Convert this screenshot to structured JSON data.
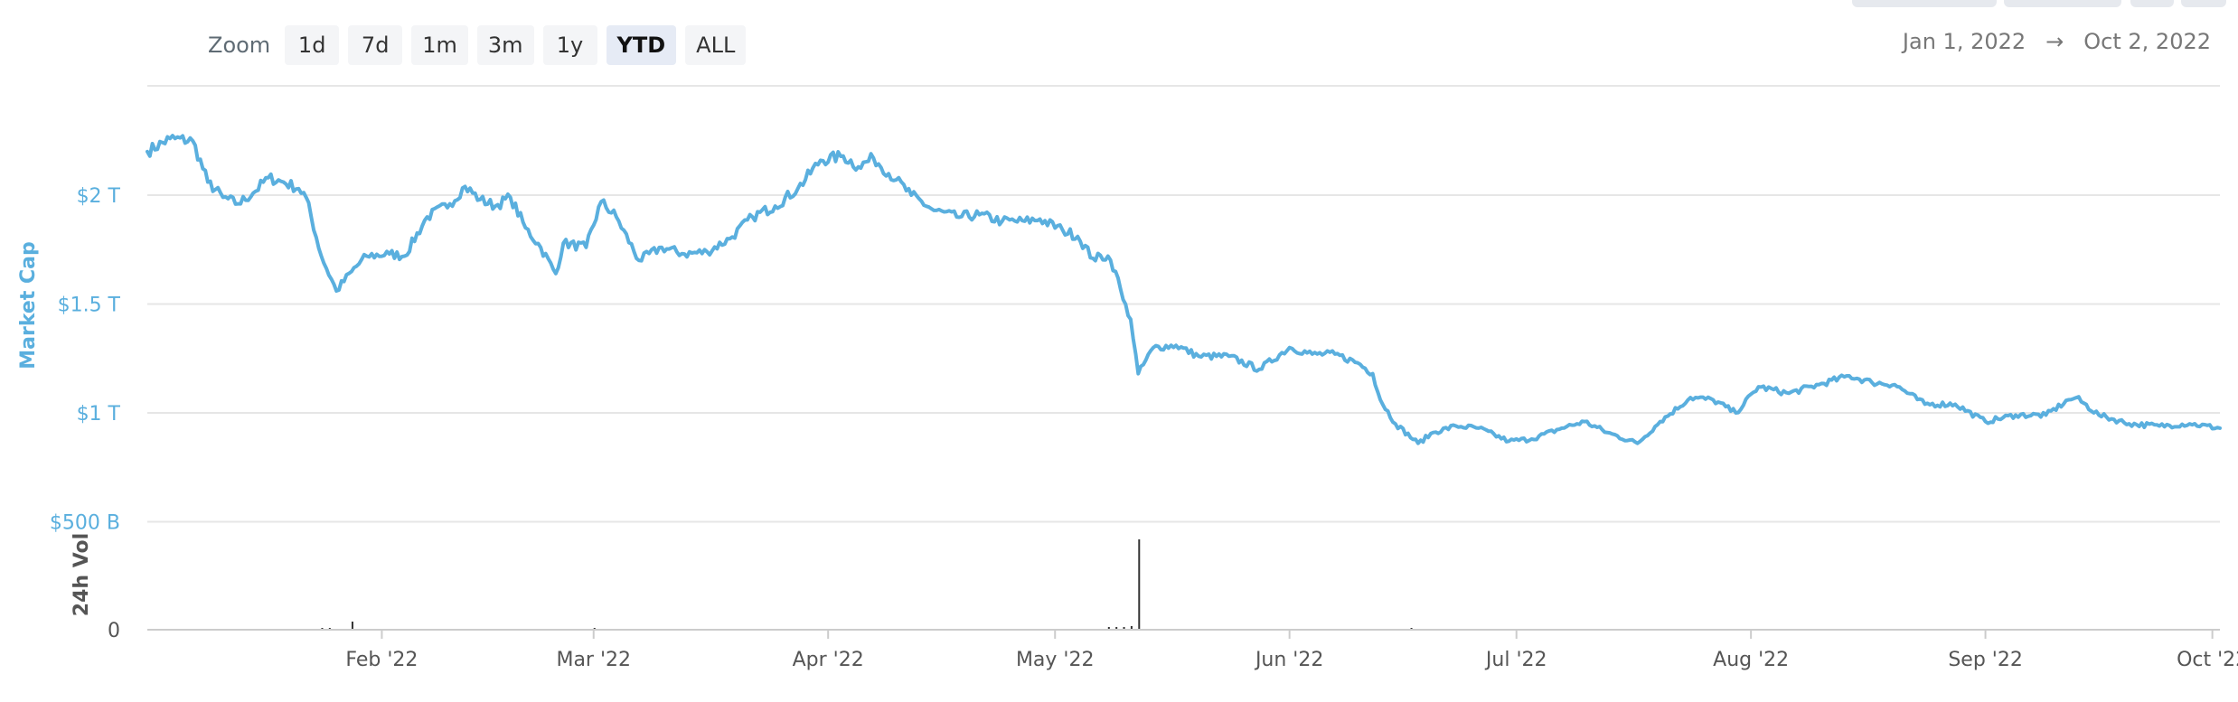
{
  "zoom": {
    "label": "Zoom",
    "buttons": [
      "1d",
      "7d",
      "1m",
      "3m",
      "1y",
      "YTD",
      "ALL"
    ],
    "active": "YTD"
  },
  "date_range": {
    "from": "Jan 1, 2022",
    "separator": "→",
    "to": "Oct 2, 2022"
  },
  "colors": {
    "line": "#5aafde",
    "axis_text": "#5aafde",
    "volume": "#333333",
    "grid": "#e6e6e6"
  },
  "chart_data": [
    {
      "type": "line",
      "ylabel": "Market Cap",
      "yticks": [
        {
          "value": 2000,
          "label": "$2 T"
        },
        {
          "value": 1500,
          "label": "$1.5 T"
        },
        {
          "value": 1000,
          "label": "$1 T"
        },
        {
          "value": 500,
          "label": "$500 B"
        }
      ],
      "ylim": [
        500,
        2350
      ],
      "xlim": [
        "2022-01-01",
        "2022-10-02"
      ],
      "xticks": [
        {
          "date": "2022-02-01",
          "label": "Feb '22"
        },
        {
          "date": "2022-03-01",
          "label": "Mar '22"
        },
        {
          "date": "2022-04-01",
          "label": "Apr '22"
        },
        {
          "date": "2022-05-01",
          "label": "May '22"
        },
        {
          "date": "2022-06-01",
          "label": "Jun '22"
        },
        {
          "date": "2022-07-01",
          "label": "Jul '22"
        },
        {
          "date": "2022-08-01",
          "label": "Aug '22"
        },
        {
          "date": "2022-09-01",
          "label": "Sep '22"
        },
        {
          "date": "2022-10-01",
          "label": "Oct '22"
        }
      ],
      "series": [
        {
          "x": [
            "2022-01-01",
            "2022-01-04",
            "2022-01-07",
            "2022-01-09",
            "2022-01-11",
            "2022-01-13",
            "2022-01-15",
            "2022-01-17",
            "2022-01-19",
            "2022-01-21",
            "2022-01-22",
            "2022-01-24",
            "2022-01-26",
            "2022-01-28",
            "2022-01-30",
            "2022-02-02",
            "2022-02-04",
            "2022-02-07",
            "2022-02-10",
            "2022-02-12",
            "2022-02-14",
            "2022-02-16",
            "2022-02-18",
            "2022-02-20",
            "2022-02-22",
            "2022-02-24",
            "2022-02-25",
            "2022-02-28",
            "2022-03-02",
            "2022-03-04",
            "2022-03-07",
            "2022-03-10",
            "2022-03-13",
            "2022-03-16",
            "2022-03-19",
            "2022-03-22",
            "2022-03-25",
            "2022-03-28",
            "2022-03-31",
            "2022-04-03",
            "2022-04-05",
            "2022-04-07",
            "2022-04-10",
            "2022-04-12",
            "2022-04-15",
            "2022-04-18",
            "2022-04-21",
            "2022-04-24",
            "2022-04-27",
            "2022-04-29",
            "2022-05-02",
            "2022-05-04",
            "2022-05-06",
            "2022-05-08",
            "2022-05-09",
            "2022-05-10",
            "2022-05-11",
            "2022-05-12",
            "2022-05-14",
            "2022-05-17",
            "2022-05-20",
            "2022-05-24",
            "2022-05-28",
            "2022-06-01",
            "2022-06-04",
            "2022-06-07",
            "2022-06-10",
            "2022-06-12",
            "2022-06-13",
            "2022-06-15",
            "2022-06-18",
            "2022-06-20",
            "2022-06-23",
            "2022-06-26",
            "2022-06-30",
            "2022-07-03",
            "2022-07-07",
            "2022-07-10",
            "2022-07-13",
            "2022-07-17",
            "2022-07-20",
            "2022-07-24",
            "2022-07-27",
            "2022-07-30",
            "2022-08-02",
            "2022-08-06",
            "2022-08-10",
            "2022-08-14",
            "2022-08-17",
            "2022-08-20",
            "2022-08-24",
            "2022-08-28",
            "2022-09-01",
            "2022-09-05",
            "2022-09-09",
            "2022-09-12",
            "2022-09-13",
            "2022-09-16",
            "2022-09-20",
            "2022-09-24",
            "2022-09-28",
            "2022-10-02"
          ],
          "values": [
            2200,
            2260,
            2250,
            2060,
            1990,
            1960,
            2010,
            2080,
            2060,
            2030,
            1990,
            1720,
            1560,
            1650,
            1720,
            1730,
            1720,
            1900,
            1960,
            2040,
            1980,
            1950,
            1990,
            1850,
            1760,
            1640,
            1780,
            1760,
            1970,
            1900,
            1700,
            1760,
            1730,
            1740,
            1800,
            1900,
            1950,
            2030,
            2160,
            2180,
            2130,
            2170,
            2070,
            2000,
            1930,
            1900,
            1910,
            1880,
            1880,
            1890,
            1840,
            1810,
            1710,
            1720,
            1650,
            1520,
            1430,
            1180,
            1300,
            1310,
            1260,
            1260,
            1200,
            1300,
            1270,
            1270,
            1230,
            1180,
            1060,
            950,
            860,
            910,
            940,
            930,
            870,
            880,
            930,
            960,
            910,
            860,
            960,
            1070,
            1060,
            1000,
            1120,
            1090,
            1130,
            1170,
            1140,
            1130,
            1040,
            1040,
            960,
            990,
            990,
            1060,
            1070,
            990,
            950,
            940,
            950,
            930
          ]
        }
      ]
    },
    {
      "type": "bar",
      "ylabel": "24h Vol",
      "yticks": [
        {
          "value": 0,
          "label": "0"
        }
      ],
      "ylim": [
        0,
        100
      ],
      "x": [
        "2022-01-24",
        "2022-01-25",
        "2022-01-28",
        "2022-03-01",
        "2022-05-08",
        "2022-05-09",
        "2022-05-10",
        "2022-05-11",
        "2022-05-12",
        "2022-06-17"
      ],
      "values": [
        2,
        2,
        9,
        2,
        3,
        3,
        3,
        4,
        100,
        2
      ]
    }
  ]
}
